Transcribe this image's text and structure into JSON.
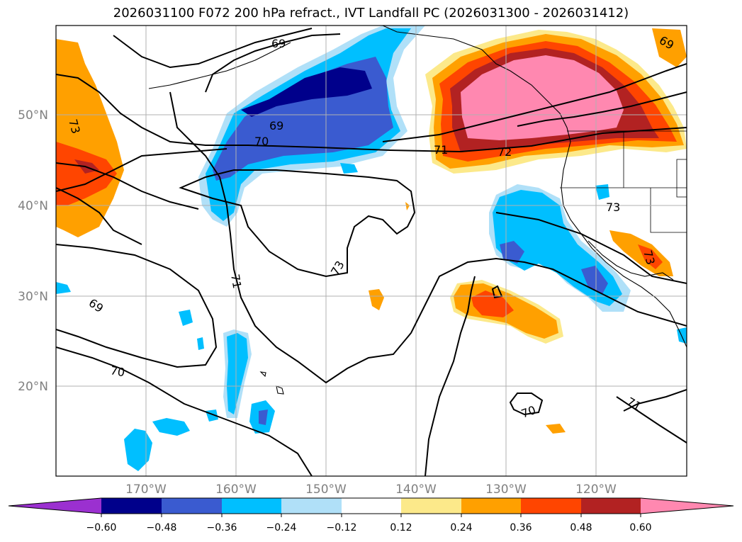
{
  "title": "2026031100 F072 200 hPa refract., IVT Landfall PC (2026031300 - 2026031412)",
  "lat_labels": [
    "50°N",
    "40°N",
    "30°N",
    "20°N"
  ],
  "lon_labels": [
    "170°W",
    "160°W",
    "150°W",
    "140°W",
    "130°W",
    "120°W"
  ],
  "contour_labels": [
    "69",
    "73",
    "69",
    "70",
    "71",
    "72",
    "73",
    "73",
    "71",
    "73",
    "69",
    "70",
    "70",
    "71",
    "69"
  ],
  "colorbar": {
    "colors": [
      "#9b30d0",
      "#00008b",
      "#3a5bd0",
      "#00bfff",
      "#b0e0f8",
      "#ffffff",
      "#fce98a",
      "#ffa000",
      "#ff4500",
      "#b22222",
      "#ff88b0"
    ],
    "ticks": [
      "−0.60",
      "−0.48",
      "−0.36",
      "−0.24",
      "−0.12",
      "0.12",
      "0.24",
      "0.36",
      "0.48",
      "0.60"
    ]
  }
}
